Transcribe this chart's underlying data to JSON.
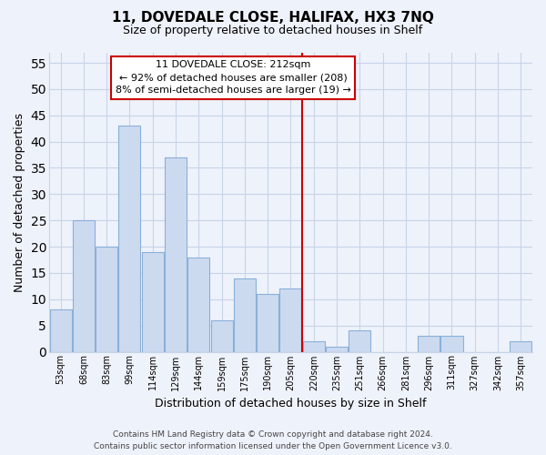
{
  "title": "11, DOVEDALE CLOSE, HALIFAX, HX3 7NQ",
  "subtitle": "Size of property relative to detached houses in Shelf",
  "xlabel": "Distribution of detached houses by size in Shelf",
  "ylabel": "Number of detached properties",
  "categories": [
    "53sqm",
    "68sqm",
    "83sqm",
    "99sqm",
    "114sqm",
    "129sqm",
    "144sqm",
    "159sqm",
    "175sqm",
    "190sqm",
    "205sqm",
    "220sqm",
    "235sqm",
    "251sqm",
    "266sqm",
    "281sqm",
    "296sqm",
    "311sqm",
    "327sqm",
    "342sqm",
    "357sqm"
  ],
  "values": [
    8,
    25,
    20,
    43,
    19,
    37,
    18,
    6,
    14,
    11,
    12,
    2,
    1,
    4,
    0,
    0,
    3,
    3,
    0,
    0,
    2
  ],
  "bar_color": "#ccdaf0",
  "bar_edge_color": "#8ab0d8",
  "vline_x": 10.5,
  "annotation_title": "11 DOVEDALE CLOSE: 212sqm",
  "annotation_line1": "← 92% of detached houses are smaller (208)",
  "annotation_line2": "8% of semi-detached houses are larger (19) →",
  "ylim": [
    0,
    57
  ],
  "yticks": [
    0,
    5,
    10,
    15,
    20,
    25,
    30,
    35,
    40,
    45,
    50,
    55
  ],
  "background_color": "#eef2fa",
  "grid_color": "#c8d4e8",
  "footer_line1": "Contains HM Land Registry data © Crown copyright and database right 2024.",
  "footer_line2": "Contains public sector information licensed under the Open Government Licence v3.0."
}
